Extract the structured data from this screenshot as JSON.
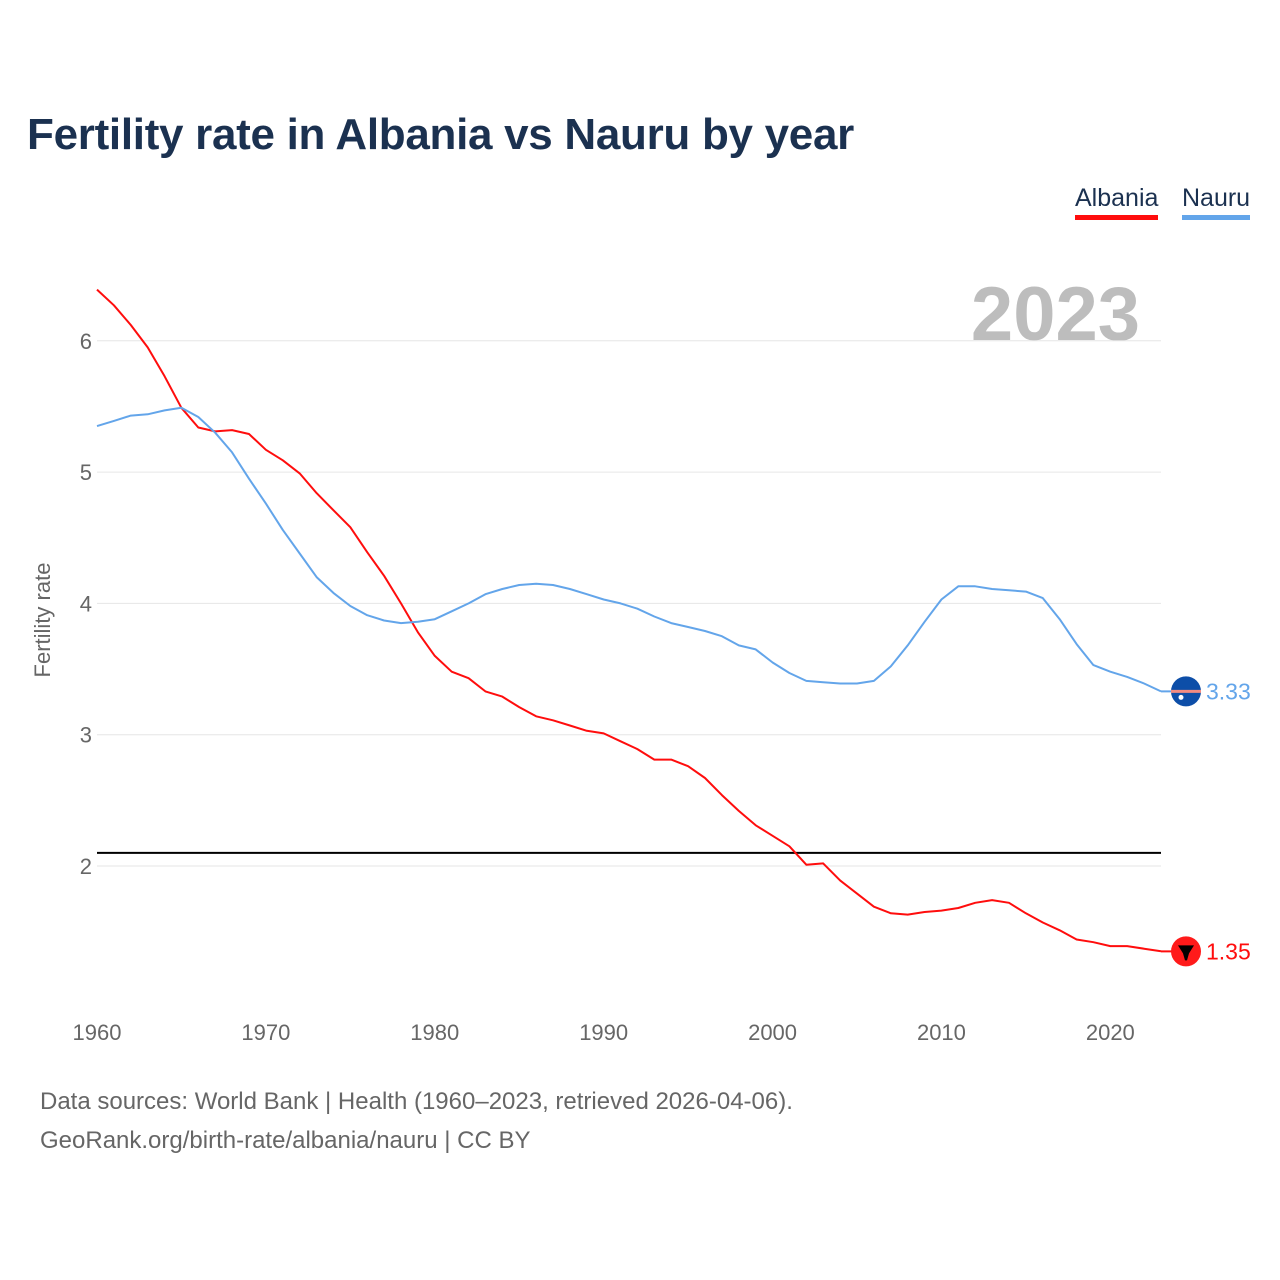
{
  "chart_data": {
    "type": "line",
    "title": "Fertility rate in Albania vs Nauru by year",
    "xlabel": "",
    "ylabel": "Fertility rate",
    "xlim": [
      1960,
      2023
    ],
    "ylim": [
      1.0,
      6.5
    ],
    "xticks": [
      1960,
      1970,
      1980,
      1990,
      2000,
      2010,
      2020
    ],
    "yticks": [
      2,
      3,
      4,
      5,
      6
    ],
    "grid": true,
    "legend_position": "top-right",
    "year_label": "2023",
    "reference_line": {
      "value": 2.1,
      "color": "#000000"
    },
    "x": [
      1960,
      1961,
      1962,
      1963,
      1964,
      1965,
      1966,
      1967,
      1968,
      1969,
      1970,
      1971,
      1972,
      1973,
      1974,
      1975,
      1976,
      1977,
      1978,
      1979,
      1980,
      1981,
      1982,
      1983,
      1984,
      1985,
      1986,
      1987,
      1988,
      1989,
      1990,
      1991,
      1992,
      1993,
      1994,
      1995,
      1996,
      1997,
      1998,
      1999,
      2000,
      2001,
      2002,
      2003,
      2004,
      2005,
      2006,
      2007,
      2008,
      2009,
      2010,
      2011,
      2012,
      2013,
      2014,
      2015,
      2016,
      2017,
      2018,
      2019,
      2020,
      2021,
      2022,
      2023
    ],
    "series": [
      {
        "name": "Albania",
        "color": "#ff0d0d",
        "end_label": "1.35",
        "flag": "albania-flag",
        "values": [
          6.39,
          6.27,
          6.12,
          5.95,
          5.73,
          5.49,
          5.34,
          5.31,
          5.32,
          5.29,
          5.17,
          5.09,
          4.99,
          4.84,
          4.71,
          4.58,
          4.39,
          4.21,
          4.0,
          3.78,
          3.6,
          3.48,
          3.43,
          3.33,
          3.29,
          3.21,
          3.14,
          3.11,
          3.07,
          3.03,
          3.01,
          2.95,
          2.89,
          2.81,
          2.81,
          2.76,
          2.67,
          2.54,
          2.42,
          2.31,
          2.23,
          2.15,
          2.01,
          2.02,
          1.89,
          1.79,
          1.69,
          1.64,
          1.63,
          1.65,
          1.66,
          1.68,
          1.72,
          1.74,
          1.72,
          1.64,
          1.57,
          1.51,
          1.44,
          1.42,
          1.39,
          1.39,
          1.37,
          1.35
        ]
      },
      {
        "name": "Nauru",
        "color": "#63a5ea",
        "end_label": "3.33",
        "flag": "nauru-flag",
        "values": [
          5.35,
          5.39,
          5.43,
          5.44,
          5.47,
          5.49,
          5.42,
          5.3,
          5.15,
          4.95,
          4.76,
          4.56,
          4.38,
          4.2,
          4.08,
          3.98,
          3.91,
          3.87,
          3.85,
          3.86,
          3.88,
          3.94,
          4.0,
          4.07,
          4.11,
          4.14,
          4.15,
          4.14,
          4.11,
          4.07,
          4.03,
          4.0,
          3.96,
          3.9,
          3.85,
          3.82,
          3.79,
          3.75,
          3.68,
          3.65,
          3.55,
          3.47,
          3.41,
          3.4,
          3.39,
          3.39,
          3.41,
          3.52,
          3.68,
          3.86,
          4.03,
          4.13,
          4.13,
          4.11,
          4.1,
          4.09,
          4.04,
          3.88,
          3.69,
          3.53,
          3.48,
          3.44,
          3.39,
          3.33
        ]
      }
    ]
  },
  "footer": {
    "sources": "Data sources: World Bank | Health (1960–2023, retrieved 2026-04-06).",
    "credit": "GeoRank.org/birth-rate/albania/nauru | CC BY"
  }
}
